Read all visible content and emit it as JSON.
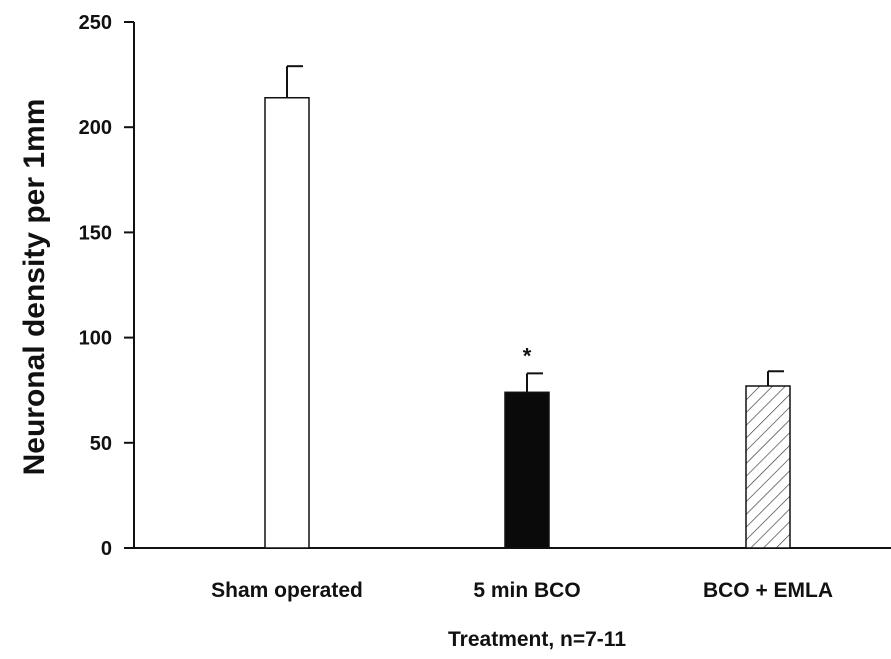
{
  "chart_data": {
    "type": "bar",
    "title": "",
    "xlabel": "Treatment, n=7-11",
    "ylabel": "Neuronal density per 1mm",
    "ylim": [
      0,
      250
    ],
    "yticks": [
      0,
      50,
      100,
      150,
      200,
      250
    ],
    "categories": [
      "Sham operated",
      "5 min BCO",
      "BCO + EMLA"
    ],
    "values": [
      214,
      74,
      77
    ],
    "errors": [
      15,
      9,
      7
    ],
    "annotations": [
      "",
      "*",
      ""
    ],
    "fills": [
      "white",
      "black",
      "hatched"
    ],
    "grid": false,
    "legend": "none"
  },
  "colors": {
    "axis": "#111111",
    "bar_outline": "#111111",
    "bar_white": "#ffffff",
    "bar_black": "#0a0a0a",
    "hatch": "#333333"
  }
}
